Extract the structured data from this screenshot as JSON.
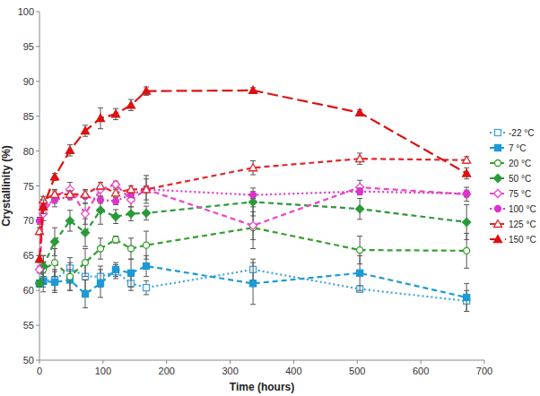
{
  "chart_data": {
    "type": "line",
    "x_label": "Time (hours)",
    "y_label": "Crystallinity (%)",
    "x": [
      0,
      6,
      24,
      48,
      72,
      96,
      120,
      144,
      168,
      336,
      504,
      672
    ],
    "xlim": [
      0,
      700
    ],
    "xticks": [
      0,
      100,
      200,
      300,
      400,
      500,
      600,
      700
    ],
    "ylim": [
      50,
      100
    ],
    "yticks": [
      50,
      55,
      60,
      65,
      70,
      75,
      80,
      85,
      90,
      95,
      100
    ],
    "grid": false,
    "legend": "right",
    "series": [
      {
        "name": "-22 °C",
        "color": "#3fa4dc",
        "marker": "square-open",
        "line_style": "dotted",
        "values": [
          61,
          61.5,
          61.5,
          63.2,
          62,
          62,
          62.7,
          61,
          60.4,
          63,
          60.2,
          58.5
        ],
        "errors": [
          0.5,
          1,
          1.5,
          1.5,
          2,
          1.5,
          1,
          1,
          1,
          1.5,
          0.5,
          1.5
        ]
      },
      {
        "name": "7 °C",
        "color": "#1c9ad6",
        "marker": "square",
        "line_style": "dashed",
        "values": [
          61,
          61.3,
          61.2,
          61.5,
          59.5,
          61,
          63,
          62.5,
          63.5,
          61,
          62.5,
          59
        ],
        "errors": [
          0.5,
          1.5,
          1.5,
          1.5,
          2,
          2,
          1,
          2,
          1.5,
          3,
          2.5,
          2
        ]
      },
      {
        "name": "20 °C",
        "color": "#33a02c",
        "marker": "circle-open",
        "line_style": "dashed",
        "values": [
          61,
          63,
          64,
          62,
          64,
          66,
          67.3,
          66,
          66.5,
          69,
          65.8,
          65.7
        ],
        "errors": [
          0.5,
          2,
          2,
          2,
          2,
          1.5,
          0.5,
          1.5,
          2,
          3,
          2,
          2.5
        ]
      },
      {
        "name": "50 °C",
        "color": "#2a9a3a",
        "marker": "diamond",
        "line_style": "dashed",
        "values": [
          61,
          63.5,
          67,
          70,
          68.3,
          71.5,
          70.6,
          71,
          71.1,
          72.7,
          71.7,
          69.8
        ],
        "errors": [
          0.5,
          1.5,
          2,
          1.5,
          2,
          2,
          1,
          1,
          1,
          2,
          1.5,
          2.5
        ]
      },
      {
        "name": "75 °C",
        "color": "#ee44cc",
        "marker": "diamond-open",
        "line_style": "dashed",
        "values": [
          63,
          71,
          73.5,
          74.5,
          71,
          74.5,
          75.2,
          73,
          74.5,
          69.3,
          74.8,
          73.8
        ],
        "errors": [
          0.5,
          1,
          1,
          1,
          1.5,
          1,
          0.5,
          1,
          1.5,
          2,
          1,
          1
        ]
      },
      {
        "name": "100 °C",
        "color": "#dd33cc",
        "marker": "circle",
        "line_style": "dotted",
        "values": [
          70,
          72,
          73,
          73.5,
          73.5,
          73,
          72.8,
          73.8,
          74.5,
          73.7,
          74.2,
          73.9
        ],
        "errors": [
          0.5,
          1,
          1,
          0.5,
          1,
          0.5,
          0.5,
          0.5,
          0.5,
          0.5,
          0.5,
          0.5
        ]
      },
      {
        "name": "125 °C",
        "color": "#e4262a",
        "marker": "triangle-open",
        "line_style": "dashed",
        "values": [
          68.5,
          73,
          73.8,
          73.8,
          73.8,
          75,
          74,
          74.5,
          74.5,
          77.6,
          78.9,
          78.7
        ],
        "errors": [
          0.5,
          0.5,
          0.5,
          0.5,
          0.5,
          0.5,
          0.5,
          0.5,
          2,
          1,
          0.8,
          0.5
        ]
      },
      {
        "name": "150 °C",
        "color": "#dd1111",
        "marker": "triangle",
        "line_style": "longdash",
        "values": [
          64.5,
          72,
          76.3,
          80.1,
          82.9,
          84.7,
          85.3,
          86.6,
          88.6,
          88.7,
          85.5,
          76.8
        ],
        "errors": [
          0.5,
          1,
          0.5,
          0.8,
          0.8,
          1.5,
          0.8,
          0.8,
          0.6,
          0.4,
          0.4,
          0.8
        ]
      }
    ]
  }
}
